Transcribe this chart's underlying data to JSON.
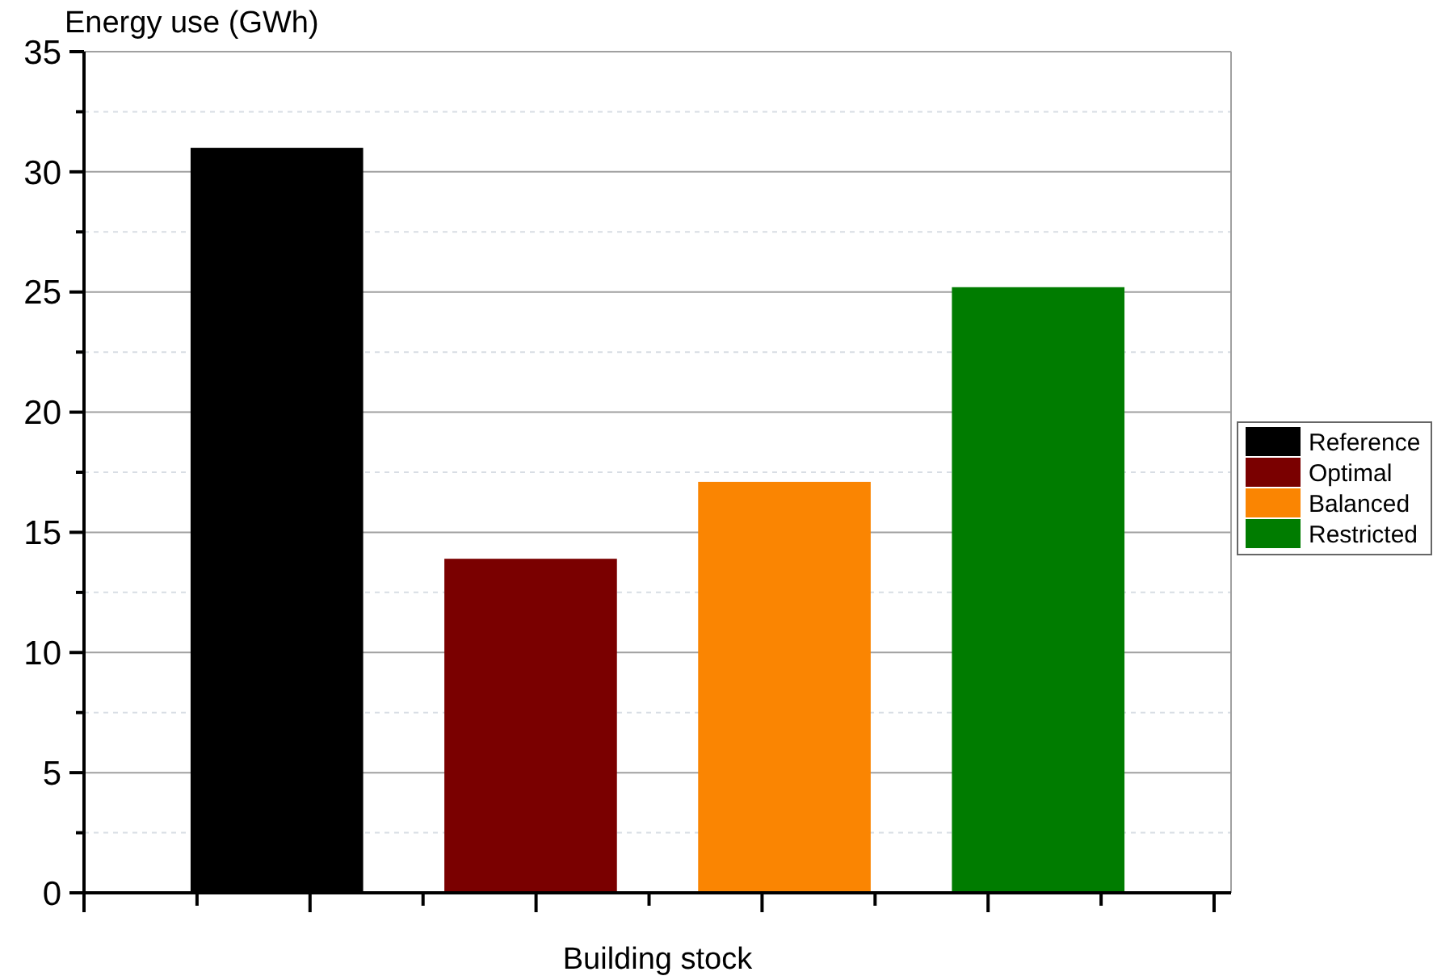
{
  "chart_data": {
    "type": "bar",
    "ylabel": "Energy use (GWh)",
    "xlabel": "Building stock",
    "categories": [
      null,
      null,
      null,
      null
    ],
    "series": [
      {
        "name": "Reference",
        "color": "#000000",
        "values": [
          31,
          null,
          null,
          null
        ]
      },
      {
        "name": "Optimal",
        "color": "#7a0000",
        "values": [
          null,
          13.9,
          null,
          null
        ]
      },
      {
        "name": "Balanced",
        "color": "#fa8502",
        "values": [
          null,
          null,
          17.1,
          null
        ]
      },
      {
        "name": "Restricted",
        "color": "#007c00",
        "values": [
          null,
          null,
          null,
          25.2
        ]
      }
    ],
    "ylim": [
      0,
      35
    ],
    "yticks": [
      0,
      {
        "value": 2.5,
        "label": null
      },
      5,
      {
        "value": 7.5,
        "label": null
      },
      10,
      {
        "value": 12.5,
        "label": null
      },
      15,
      {
        "value": 17.5,
        "label": null
      },
      20,
      {
        "value": 22.5,
        "label": null
      },
      25,
      {
        "value": 27.5,
        "label": null
      },
      30,
      {
        "value": 32.5,
        "label": null
      },
      35
    ],
    "grid": true,
    "legend": "right"
  }
}
